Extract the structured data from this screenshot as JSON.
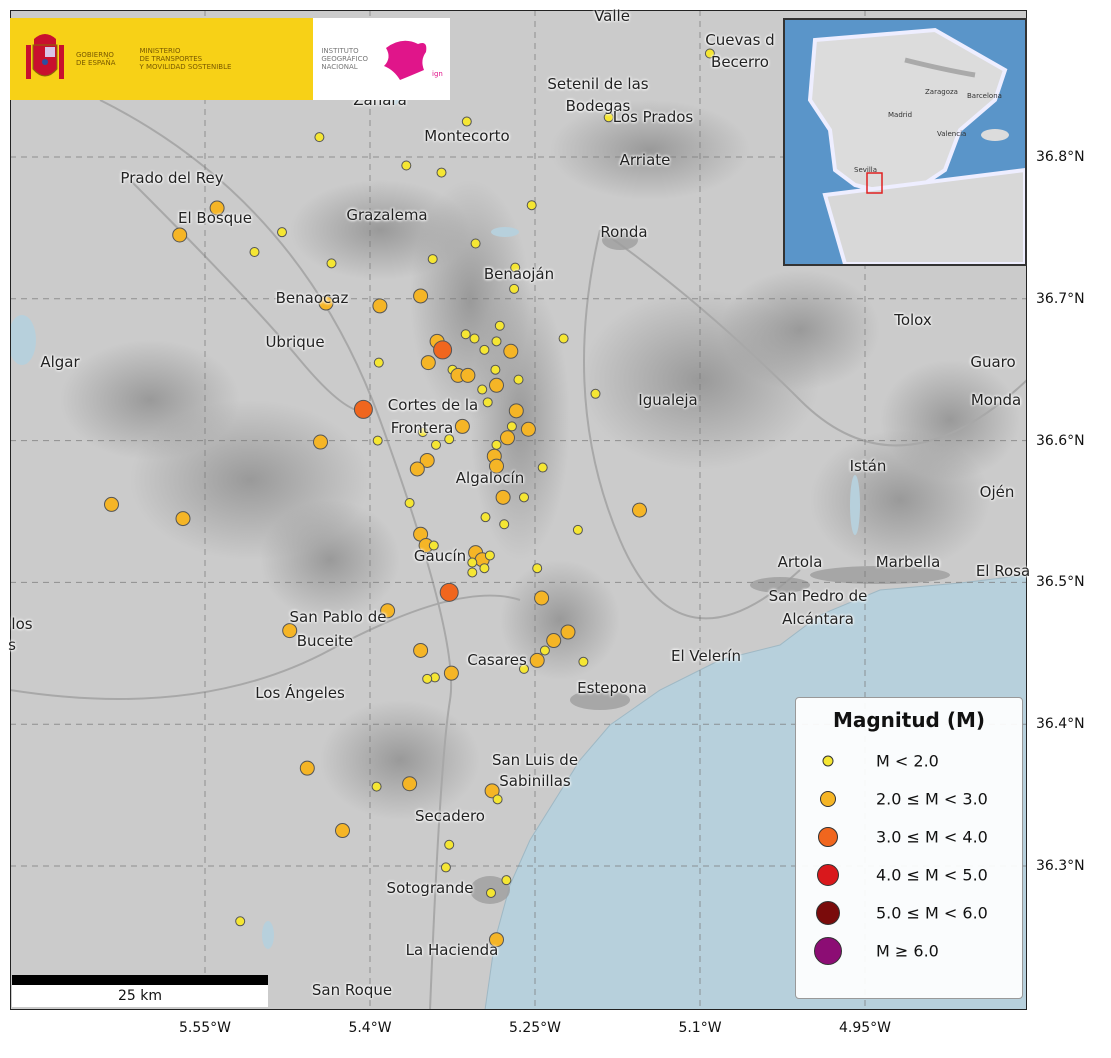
{
  "logos": {
    "government": [
      "GOBIERNO",
      "DE ESPAÑA"
    ],
    "ministry": [
      "MINISTERIO",
      "DE TRANSPORTES",
      "Y MOVILIDAD SOSTENIBLE"
    ],
    "institute": [
      "INSTITUTO",
      "GEOGRÁFICO",
      "NACIONAL"
    ],
    "institute_mark": "ign"
  },
  "axes": {
    "x_ticks": [
      "5.55°W",
      "5.4°W",
      "5.25°W",
      "5.1°W",
      "4.95°W"
    ],
    "y_ticks": [
      "36.8°N",
      "36.7°N",
      "36.6°N",
      "36.5°N",
      "36.4°N",
      "36.3°N"
    ],
    "x_tick_values": [
      -5.55,
      -5.4,
      -5.25,
      -5.1,
      -4.95
    ],
    "y_tick_values": [
      36.8,
      36.7,
      36.6,
      36.5,
      36.4,
      36.3
    ],
    "grid": "dashed"
  },
  "places": [
    "Valle",
    "Setenil de las",
    "Bodegas",
    "Cuevas d",
    "Becerro",
    "Zahara",
    "Los Prados",
    "Montecorto",
    "Arriate",
    "Prado del Rey",
    "El Bosque",
    "Grazalema",
    "Ronda",
    "Benaoján",
    "Benaocaz",
    "Tolox",
    "Ubrique",
    "Algar",
    "Guaro",
    "Cortes de la",
    "Frontera",
    "Igualeja",
    "Monda",
    "Istán",
    "Algalocín",
    "Ojén",
    "Gaucín",
    "Artola",
    "Marbella",
    "El Rosa",
    "San Pedro de",
    "Alcántara",
    "San Pablo de",
    "Buceite",
    "los",
    "s",
    "Casares",
    "El Velerín",
    "Estepona",
    "Los Ángeles",
    "San Luis de",
    "Sabinillas",
    "Secadero",
    "Sotogrande",
    "La Hacienda",
    "San Roque"
  ],
  "inset": {
    "labels": [
      "Zaragoza",
      "Barcelona",
      "Madrid",
      "Valencia",
      "Sevilla"
    ],
    "highlight_color": "#e02020"
  },
  "legend": {
    "title": "Magnitud (M)",
    "items": [
      {
        "label": "M < 2.0",
        "color": "#f5e633"
      },
      {
        "label": "2.0 ≤ M < 3.0",
        "color": "#f5b526"
      },
      {
        "label": "3.0 ≤ M < 4.0",
        "color": "#f0661e"
      },
      {
        "label": "4.0 ≤ M < 5.0",
        "color": "#d9181c"
      },
      {
        "label": "5.0 ≤ M < 6.0",
        "color": "#7a0b0b"
      },
      {
        "label": "M ≥ 6.0",
        "color": "#8c0d74"
      }
    ]
  },
  "scale_bar": {
    "label": "25 km"
  },
  "colors": {
    "sea": "#b9d3df",
    "land": "#c9c9c9"
  },
  "earthquakes": [
    [
      -5.091,
      36.873,
      0
    ],
    [
      -5.183,
      36.828,
      0
    ],
    [
      -5.312,
      36.825,
      0
    ],
    [
      -5.446,
      36.814,
      0
    ],
    [
      -5.367,
      36.794,
      0
    ],
    [
      -5.335,
      36.789,
      0
    ],
    [
      -5.539,
      36.764,
      1
    ],
    [
      -5.573,
      36.745,
      1
    ],
    [
      -5.48,
      36.747,
      0
    ],
    [
      -5.505,
      36.733,
      0
    ],
    [
      -5.253,
      36.766,
      0
    ],
    [
      -5.304,
      36.739,
      0
    ],
    [
      -5.343,
      36.728,
      0
    ],
    [
      -5.435,
      36.725,
      0
    ],
    [
      -5.268,
      36.722,
      0
    ],
    [
      -5.269,
      36.707,
      0
    ],
    [
      -5.354,
      36.702,
      1
    ],
    [
      -5.44,
      36.697,
      1
    ],
    [
      -5.391,
      36.695,
      1
    ],
    [
      -5.282,
      36.681,
      0
    ],
    [
      -5.313,
      36.675,
      0
    ],
    [
      -5.305,
      36.672,
      0
    ],
    [
      -5.339,
      36.67,
      1
    ],
    [
      -5.334,
      36.664,
      2
    ],
    [
      -5.296,
      36.664,
      0
    ],
    [
      -5.285,
      36.67,
      0
    ],
    [
      -5.272,
      36.663,
      1
    ],
    [
      -5.224,
      36.672,
      0
    ],
    [
      -5.392,
      36.655,
      0
    ],
    [
      -5.347,
      36.655,
      1
    ],
    [
      -5.325,
      36.65,
      0
    ],
    [
      -5.32,
      36.646,
      1
    ],
    [
      -5.311,
      36.646,
      1
    ],
    [
      -5.286,
      36.65,
      0
    ],
    [
      -5.265,
      36.643,
      0
    ],
    [
      -5.285,
      36.639,
      1
    ],
    [
      -5.298,
      36.636,
      0
    ],
    [
      -5.195,
      36.633,
      0
    ],
    [
      -5.293,
      36.627,
      0
    ],
    [
      -5.406,
      36.622,
      2
    ],
    [
      -5.267,
      36.621,
      1
    ],
    [
      -5.271,
      36.61,
      0
    ],
    [
      -5.256,
      36.608,
      1
    ],
    [
      -5.316,
      36.61,
      1
    ],
    [
      -5.352,
      36.606,
      0
    ],
    [
      -5.328,
      36.601,
      0
    ],
    [
      -5.393,
      36.6,
      0
    ],
    [
      -5.275,
      36.602,
      1
    ],
    [
      -5.445,
      36.599,
      1
    ],
    [
      -5.34,
      36.597,
      0
    ],
    [
      -5.285,
      36.597,
      0
    ],
    [
      -5.287,
      36.589,
      1
    ],
    [
      -5.348,
      36.586,
      1
    ],
    [
      -5.243,
      36.581,
      0
    ],
    [
      -5.357,
      36.58,
      1
    ],
    [
      -5.285,
      36.582,
      1
    ],
    [
      -5.279,
      36.56,
      1
    ],
    [
      -5.364,
      36.556,
      0
    ],
    [
      -5.26,
      36.56,
      0
    ],
    [
      -5.635,
      36.555,
      1
    ],
    [
      -5.57,
      36.545,
      1
    ],
    [
      -5.155,
      36.551,
      1
    ],
    [
      -5.295,
      36.546,
      0
    ],
    [
      -5.278,
      36.541,
      0
    ],
    [
      -5.211,
      36.537,
      0
    ],
    [
      -5.354,
      36.534,
      1
    ],
    [
      -5.349,
      36.526,
      1
    ],
    [
      -5.342,
      36.526,
      0
    ],
    [
      -5.304,
      36.521,
      1
    ],
    [
      -5.298,
      36.516,
      1
    ],
    [
      -5.291,
      36.519,
      0
    ],
    [
      -5.307,
      36.514,
      0
    ],
    [
      -5.296,
      36.51,
      0
    ],
    [
      -5.307,
      36.507,
      0
    ],
    [
      -5.248,
      36.51,
      0
    ],
    [
      -5.328,
      36.493,
      2
    ],
    [
      -5.244,
      36.489,
      1
    ],
    [
      -5.384,
      36.48,
      1
    ],
    [
      -5.473,
      36.466,
      1
    ],
    [
      -5.22,
      36.465,
      1
    ],
    [
      -5.233,
      36.459,
      1
    ],
    [
      -5.241,
      36.452,
      0
    ],
    [
      -5.354,
      36.452,
      1
    ],
    [
      -5.248,
      36.445,
      1
    ],
    [
      -5.206,
      36.444,
      0
    ],
    [
      -5.26,
      36.439,
      0
    ],
    [
      -5.326,
      36.436,
      1
    ],
    [
      -5.341,
      36.433,
      0
    ],
    [
      -5.348,
      36.432,
      0
    ],
    [
      -5.457,
      36.369,
      1
    ],
    [
      -5.394,
      36.356,
      0
    ],
    [
      -5.364,
      36.358,
      1
    ],
    [
      -5.289,
      36.353,
      1
    ],
    [
      -5.284,
      36.347,
      0
    ],
    [
      -5.425,
      36.325,
      1
    ],
    [
      -5.328,
      36.315,
      0
    ],
    [
      -5.331,
      36.299,
      0
    ],
    [
      -5.276,
      36.29,
      0
    ],
    [
      -5.29,
      36.281,
      0
    ],
    [
      -5.518,
      36.261,
      0
    ],
    [
      -5.285,
      36.248,
      1
    ]
  ]
}
